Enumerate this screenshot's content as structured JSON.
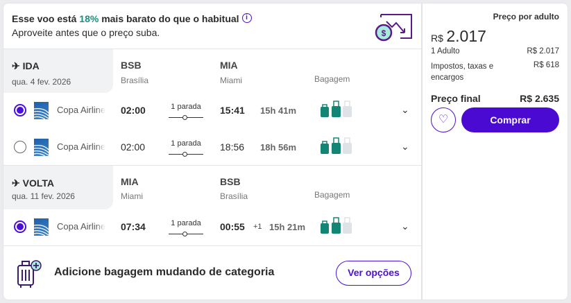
{
  "promo": {
    "text_before": "Esse voo está ",
    "percent": "18%",
    "text_after": " mais barato do que o habitual",
    "subtitle": "Aproveite antes que o preço suba.",
    "info_icon": "info-icon",
    "graphic": "price-drop-icon"
  },
  "outbound": {
    "label": "IDA",
    "date": "qua. 4 fev. 2026",
    "origin_code": "BSB",
    "origin_city": "Brasília",
    "dest_code": "MIA",
    "dest_city": "Miami",
    "baggage_label": "Bagagem",
    "options": [
      {
        "selected": true,
        "airline": "Copa Airlines",
        "depart": "02:00",
        "stops": "1 parada",
        "arrive": "15:41",
        "day_offset": "",
        "duration": "15h 41m"
      },
      {
        "selected": false,
        "airline": "Copa Airlines",
        "depart": "02:00",
        "stops": "1 parada",
        "arrive": "18:56",
        "day_offset": "",
        "duration": "18h 56m"
      }
    ]
  },
  "return": {
    "label": "VOLTA",
    "date": "qua. 11 fev. 2026",
    "origin_code": "MIA",
    "origin_city": "Miami",
    "dest_code": "BSB",
    "dest_city": "Brasília",
    "baggage_label": "Bagagem",
    "options": [
      {
        "selected": true,
        "airline": "Copa Airlines",
        "depart": "07:34",
        "stops": "1 parada",
        "arrive": "00:55",
        "day_offset": "+1",
        "duration": "15h 21m"
      }
    ]
  },
  "banner": {
    "text": "Adicione bagagem mudando de categoria",
    "button": "Ver opções"
  },
  "price": {
    "per_adult_label": "Preço por adulto",
    "currency": "R$",
    "per_adult": "2.017",
    "adults_label": "1 Adulto",
    "adults_value": "R$ 2.017",
    "taxes_label": "Impostos, taxas e encargos",
    "taxes_value": "R$ 618",
    "final_label": "Preço final",
    "final_value": "R$ 2.635",
    "buy": "Comprar"
  },
  "colors": {
    "accent": "#4b0fd8",
    "teal": "#1a9180"
  }
}
